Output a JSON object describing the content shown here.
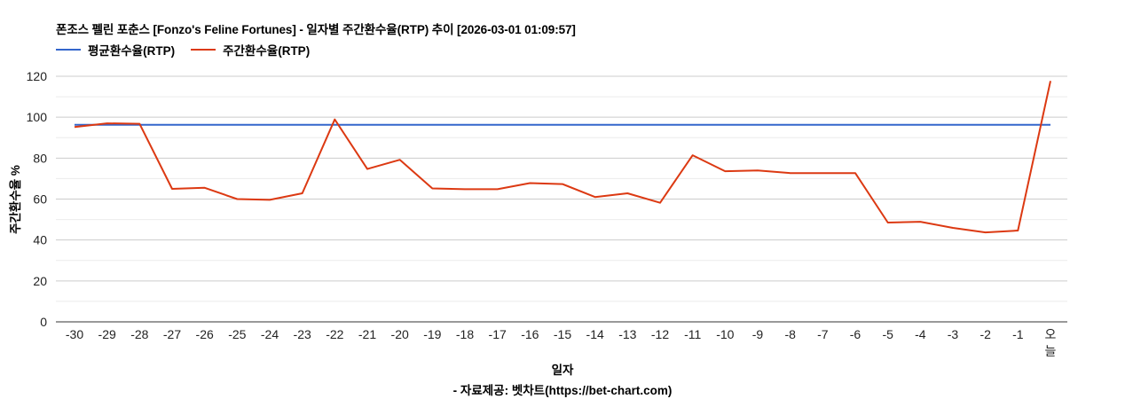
{
  "header": {
    "title": "폰조스 펠린 포춘스 [Fonzo's Feline Fortunes] - 일자별 주간환수율(RTP) 추이 [2026-03-01 01:09:57]"
  },
  "legend": [
    {
      "label": "평균환수율(RTP)",
      "color": "#3366cc"
    },
    {
      "label": "주간환수율(RTP)",
      "color": "#dc3912"
    }
  ],
  "axes": {
    "ylabel": "주간환수율 %",
    "xlabel": "일자"
  },
  "footer": {
    "credit": "- 자료제공: 벳차트(https://bet-chart.com)"
  },
  "chart_data": {
    "type": "line",
    "title": "폰조스 펠린 포춘스 [Fonzo's Feline Fortunes] - 일자별 주간환수율(RTP) 추이 [2026-03-01 01:09:57]",
    "xlabel": "일자",
    "ylabel": "주간환수율 %",
    "ylim": [
      0,
      120
    ],
    "yticks": [
      0,
      20,
      40,
      60,
      80,
      100,
      120
    ],
    "grid": true,
    "legend_position": "top",
    "categories": [
      "-30",
      "-29",
      "-28",
      "-27",
      "-26",
      "-25",
      "-24",
      "-23",
      "-22",
      "-21",
      "-20",
      "-19",
      "-18",
      "-17",
      "-16",
      "-15",
      "-14",
      "-13",
      "-12",
      "-11",
      "-10",
      "-9",
      "-8",
      "-7",
      "-6",
      "-5",
      "-4",
      "-3",
      "-2",
      "-1",
      "오늘"
    ],
    "series": [
      {
        "name": "평균환수율(RTP)",
        "color": "#3366cc",
        "values": [
          96.3,
          96.3,
          96.3,
          96.3,
          96.3,
          96.3,
          96.3,
          96.3,
          96.3,
          96.3,
          96.3,
          96.3,
          96.3,
          96.3,
          96.3,
          96.3,
          96.3,
          96.3,
          96.3,
          96.3,
          96.3,
          96.3,
          96.3,
          96.3,
          96.3,
          96.3,
          96.3,
          96.3,
          96.3,
          96.3,
          96.3
        ]
      },
      {
        "name": "주간환수율(RTP)",
        "color": "#dc3912",
        "values": [
          95.2,
          97.0,
          96.8,
          65.0,
          65.5,
          60.0,
          59.6,
          62.8,
          98.9,
          74.7,
          79.2,
          65.2,
          64.8,
          64.8,
          67.8,
          67.3,
          61.0,
          62.8,
          58.2,
          81.4,
          73.6,
          74.0,
          72.7,
          72.7,
          72.7,
          48.5,
          48.9,
          45.9,
          43.7,
          44.6,
          117.7
        ]
      }
    ]
  }
}
